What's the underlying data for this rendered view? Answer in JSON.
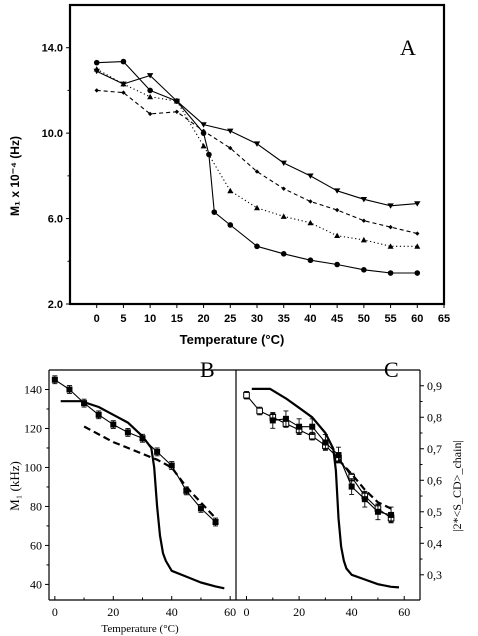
{
  "chart_data": [
    {
      "panel_label": "A",
      "type": "line",
      "xlabel": "Temperature (°C)",
      "ylabel": "M₁ x 10⁻⁴ (Hz)",
      "xlim": [
        -5,
        65
      ],
      "ylim": [
        2,
        16
      ],
      "xticks": [
        0,
        5,
        10,
        15,
        20,
        25,
        30,
        35,
        40,
        45,
        50,
        55,
        60,
        65
      ],
      "yticks": [
        2.0,
        6.0,
        10.0,
        14.0
      ],
      "ytick_labels": [
        "2.0",
        "6.0",
        "10.0",
        "14.0"
      ],
      "series": [
        {
          "style": "solid",
          "marker": "circle",
          "x": [
            0,
            5,
            10,
            15,
            20,
            21,
            22,
            25,
            30,
            35,
            40,
            45,
            50,
            55,
            60
          ],
          "y": [
            13.3,
            13.35,
            12.0,
            11.5,
            10.0,
            9.0,
            6.3,
            5.7,
            4.7,
            4.35,
            4.05,
            3.85,
            3.6,
            3.45,
            3.45
          ]
        },
        {
          "style": "solid",
          "marker": "triangle-down",
          "x": [
            0,
            5,
            10,
            15,
            20,
            25,
            30,
            35,
            40,
            45,
            50,
            55,
            60
          ],
          "y": [
            12.9,
            12.3,
            12.7,
            11.5,
            10.4,
            10.1,
            9.5,
            8.6,
            8.0,
            7.3,
            6.9,
            6.6,
            6.7
          ]
        },
        {
          "style": "dotted",
          "marker": "triangle-up",
          "x": [
            0,
            5,
            10,
            15,
            20,
            25,
            30,
            35,
            40,
            45,
            50,
            55,
            60
          ],
          "y": [
            13.0,
            12.3,
            11.7,
            11.5,
            9.4,
            7.3,
            6.5,
            6.1,
            5.8,
            5.2,
            5.0,
            4.7,
            4.7
          ]
        },
        {
          "style": "dashed",
          "marker": "diamond",
          "x": [
            0,
            5,
            10,
            15,
            20,
            25,
            30,
            35,
            40,
            45,
            50,
            55,
            60
          ],
          "y": [
            12.0,
            11.9,
            10.9,
            11.0,
            10.1,
            9.3,
            8.2,
            7.4,
            6.8,
            6.4,
            5.9,
            5.6,
            5.3
          ]
        }
      ]
    },
    {
      "panel_label": "B",
      "type": "line",
      "xlabel": "Temperature (°C)",
      "ylabel": "M₁ (kHz)",
      "xlim": [
        -2,
        62
      ],
      "ylim": [
        32,
        150
      ],
      "xticks": [
        0,
        20,
        40,
        60
      ],
      "yticks": [
        40,
        60,
        80,
        100,
        120,
        140
      ],
      "series": [
        {
          "style": "solid",
          "marker": "square",
          "x": [
            0,
            5,
            10,
            15,
            20,
            25,
            30,
            35,
            40,
            45,
            50,
            55
          ],
          "y": [
            145,
            140,
            133,
            127,
            122,
            118,
            115,
            108,
            101,
            88,
            79,
            72
          ],
          "err": [
            2,
            2,
            2,
            2,
            2,
            2,
            2,
            2,
            2,
            2,
            2,
            2
          ]
        },
        {
          "style": "solid-thick",
          "marker": "none",
          "x": [
            2,
            9,
            15,
            20,
            25,
            30,
            33,
            34,
            35,
            36,
            37,
            38,
            40,
            45,
            50,
            55,
            58
          ],
          "y": [
            134,
            134,
            131,
            127,
            123,
            116,
            110,
            100,
            80,
            65,
            56,
            52,
            47,
            44,
            41,
            39,
            38
          ]
        },
        {
          "style": "dashed-thick",
          "marker": "none",
          "x": [
            10,
            20,
            30,
            35,
            40,
            45,
            50,
            55
          ],
          "y": [
            121,
            113,
            107,
            104,
            100,
            90,
            82,
            74
          ]
        }
      ]
    },
    {
      "panel_label": "C",
      "type": "line",
      "xlabel": "",
      "ylabel": "|2*<S_CD>_chain|",
      "xlim": [
        -4,
        66
      ],
      "ylim": [
        0.22,
        0.95
      ],
      "xticks": [
        0,
        20,
        40,
        60
      ],
      "yticks": [
        0.3,
        0.4,
        0.5,
        0.6,
        0.7,
        0.8,
        0.9
      ],
      "ytick_labels": [
        "0,3",
        "0,4",
        "0,5",
        "0,6",
        "0,7",
        "0,8",
        "0,9"
      ],
      "series": [
        {
          "style": "solid",
          "marker": "square-open",
          "x": [
            0,
            5,
            10,
            15,
            20,
            25,
            30,
            35,
            40,
            45,
            50,
            55
          ],
          "y": [
            0.87,
            0.82,
            0.8,
            0.78,
            0.76,
            0.74,
            0.71,
            0.67,
            0.61,
            0.55,
            0.51,
            0.48
          ],
          "err": [
            0.012,
            0.012,
            0.012,
            0.012,
            0.012,
            0.012,
            0.012,
            0.012,
            0.012,
            0.012,
            0.012,
            0.012
          ]
        },
        {
          "style": "solid",
          "marker": "square",
          "x": [
            10,
            15,
            20,
            25,
            30,
            35,
            40,
            45,
            50,
            55
          ],
          "y": [
            0.79,
            0.795,
            0.77,
            0.77,
            0.72,
            0.68,
            0.58,
            0.54,
            0.5,
            0.49
          ],
          "err": [
            0.025,
            0.025,
            0.025,
            0.025,
            0.025,
            0.025,
            0.025,
            0.025,
            0.025,
            0.025
          ]
        },
        {
          "style": "solid-thick",
          "marker": "none",
          "x": [
            2,
            9,
            15,
            20,
            25,
            30,
            33,
            34,
            35,
            36,
            37,
            38,
            40,
            45,
            50,
            55,
            58
          ],
          "y": [
            0.89,
            0.89,
            0.86,
            0.83,
            0.8,
            0.75,
            0.7,
            0.63,
            0.48,
            0.39,
            0.345,
            0.32,
            0.3,
            0.285,
            0.27,
            0.262,
            0.26
          ]
        },
        {
          "style": "dashed-thick",
          "marker": "none",
          "x": [
            35,
            40,
            45,
            50,
            55
          ],
          "y": [
            0.665,
            0.62,
            0.57,
            0.53,
            0.51
          ]
        }
      ]
    }
  ]
}
